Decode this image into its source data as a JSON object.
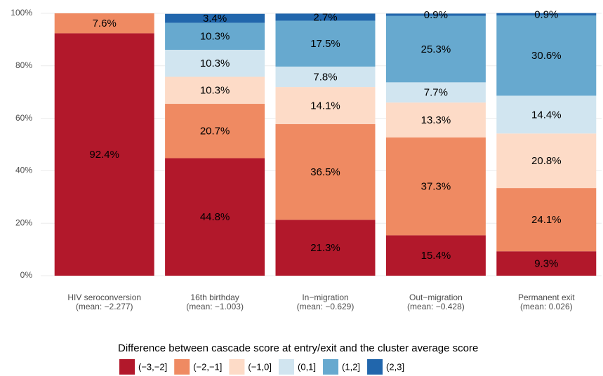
{
  "chart_data": {
    "type": "stacked-bar",
    "categories": [
      "HIV seroconversion",
      "16th birthday",
      "In−migration",
      "Out−migration",
      "Permanent exit"
    ],
    "category_means": [
      "(mean: −2.277)",
      "(mean: −1.003)",
      "(mean: −0.629)",
      "(mean: −0.428)",
      "(mean: 0.026)"
    ],
    "legend_title": "Difference between cascade score at entry/exit and the cluster average score",
    "legend_position": "bottom",
    "grid": true,
    "ylim": [
      0,
      100
    ],
    "yticks": [
      {
        "value": 0,
        "label": "0%"
      },
      {
        "value": 20,
        "label": "20%"
      },
      {
        "value": 40,
        "label": "40%"
      },
      {
        "value": 60,
        "label": "60%"
      },
      {
        "value": 80,
        "label": "80%"
      },
      {
        "value": 100,
        "label": "100%"
      }
    ],
    "series": [
      {
        "name": "(−3,−2]",
        "color": "#b2182b",
        "values": [
          92.4,
          44.8,
          21.3,
          15.4,
          9.3
        ],
        "value_labels": [
          "92.4%",
          "44.8%",
          "21.3%",
          "15.4%",
          "9.3%"
        ]
      },
      {
        "name": "(−2,−1]",
        "color": "#ef8a62",
        "values": [
          7.6,
          20.7,
          36.5,
          37.3,
          24.1
        ],
        "value_labels": [
          "7.6%",
          "20.7%",
          "36.5%",
          "37.3%",
          "24.1%"
        ]
      },
      {
        "name": "(−1,0]",
        "color": "#fddbc7",
        "values": [
          null,
          10.3,
          14.1,
          13.3,
          20.8
        ],
        "value_labels": [
          null,
          "10.3%",
          "14.1%",
          "13.3%",
          "20.8%"
        ]
      },
      {
        "name": "(0,1]",
        "color": "#d1e5f0",
        "values": [
          null,
          10.3,
          7.8,
          7.7,
          14.4
        ],
        "value_labels": [
          null,
          "10.3%",
          "7.8%",
          "7.7%",
          "14.4%"
        ]
      },
      {
        "name": "(1,2]",
        "color": "#67a9cf",
        "values": [
          null,
          10.3,
          17.5,
          25.3,
          30.6
        ],
        "value_labels": [
          null,
          "10.3%",
          "17.5%",
          "25.3%",
          "30.6%"
        ]
      },
      {
        "name": "(2,3]",
        "color": "#2166ac",
        "values": [
          null,
          3.4,
          2.7,
          0.9,
          0.9
        ],
        "value_labels": [
          null,
          "3.4%",
          "2.7%",
          "0.9%",
          "0.9%"
        ]
      }
    ]
  }
}
